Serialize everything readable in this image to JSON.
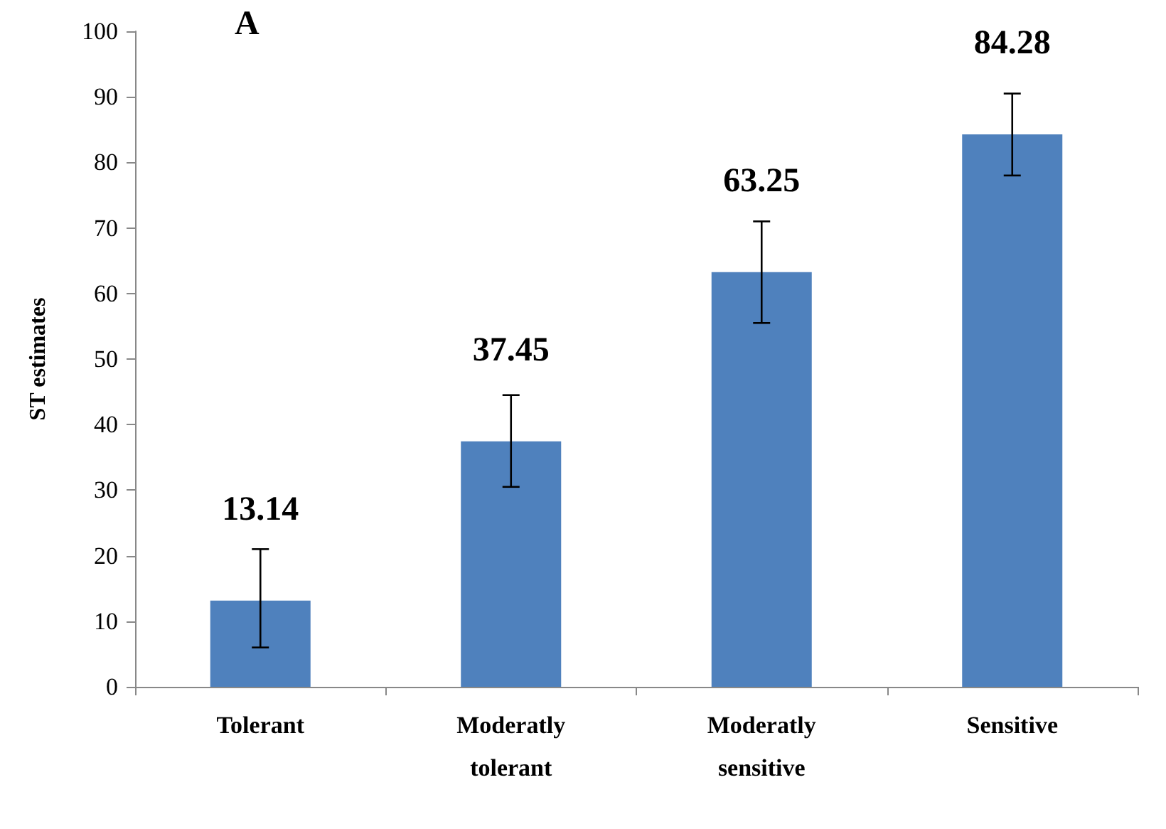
{
  "chart_data": {
    "type": "bar",
    "title": "A",
    "ylabel": "ST estimates",
    "categories": [
      "Tolerant",
      "Moderatly\ntolerant",
      "Moderatly\nsensitive",
      "Sensitive"
    ],
    "values": [
      13.14,
      37.45,
      63.25,
      84.28
    ],
    "errors": [
      [
        6,
        21
      ],
      [
        30.5,
        44.5
      ],
      [
        55.5,
        71
      ],
      [
        78,
        90.5
      ]
    ],
    "color": "#4f81bd",
    "data_labels": true,
    "grid": false,
    "ylim": [
      0,
      100
    ],
    "yticks": [
      0,
      10,
      20,
      30,
      40,
      50,
      60,
      70,
      80,
      90,
      100
    ]
  }
}
